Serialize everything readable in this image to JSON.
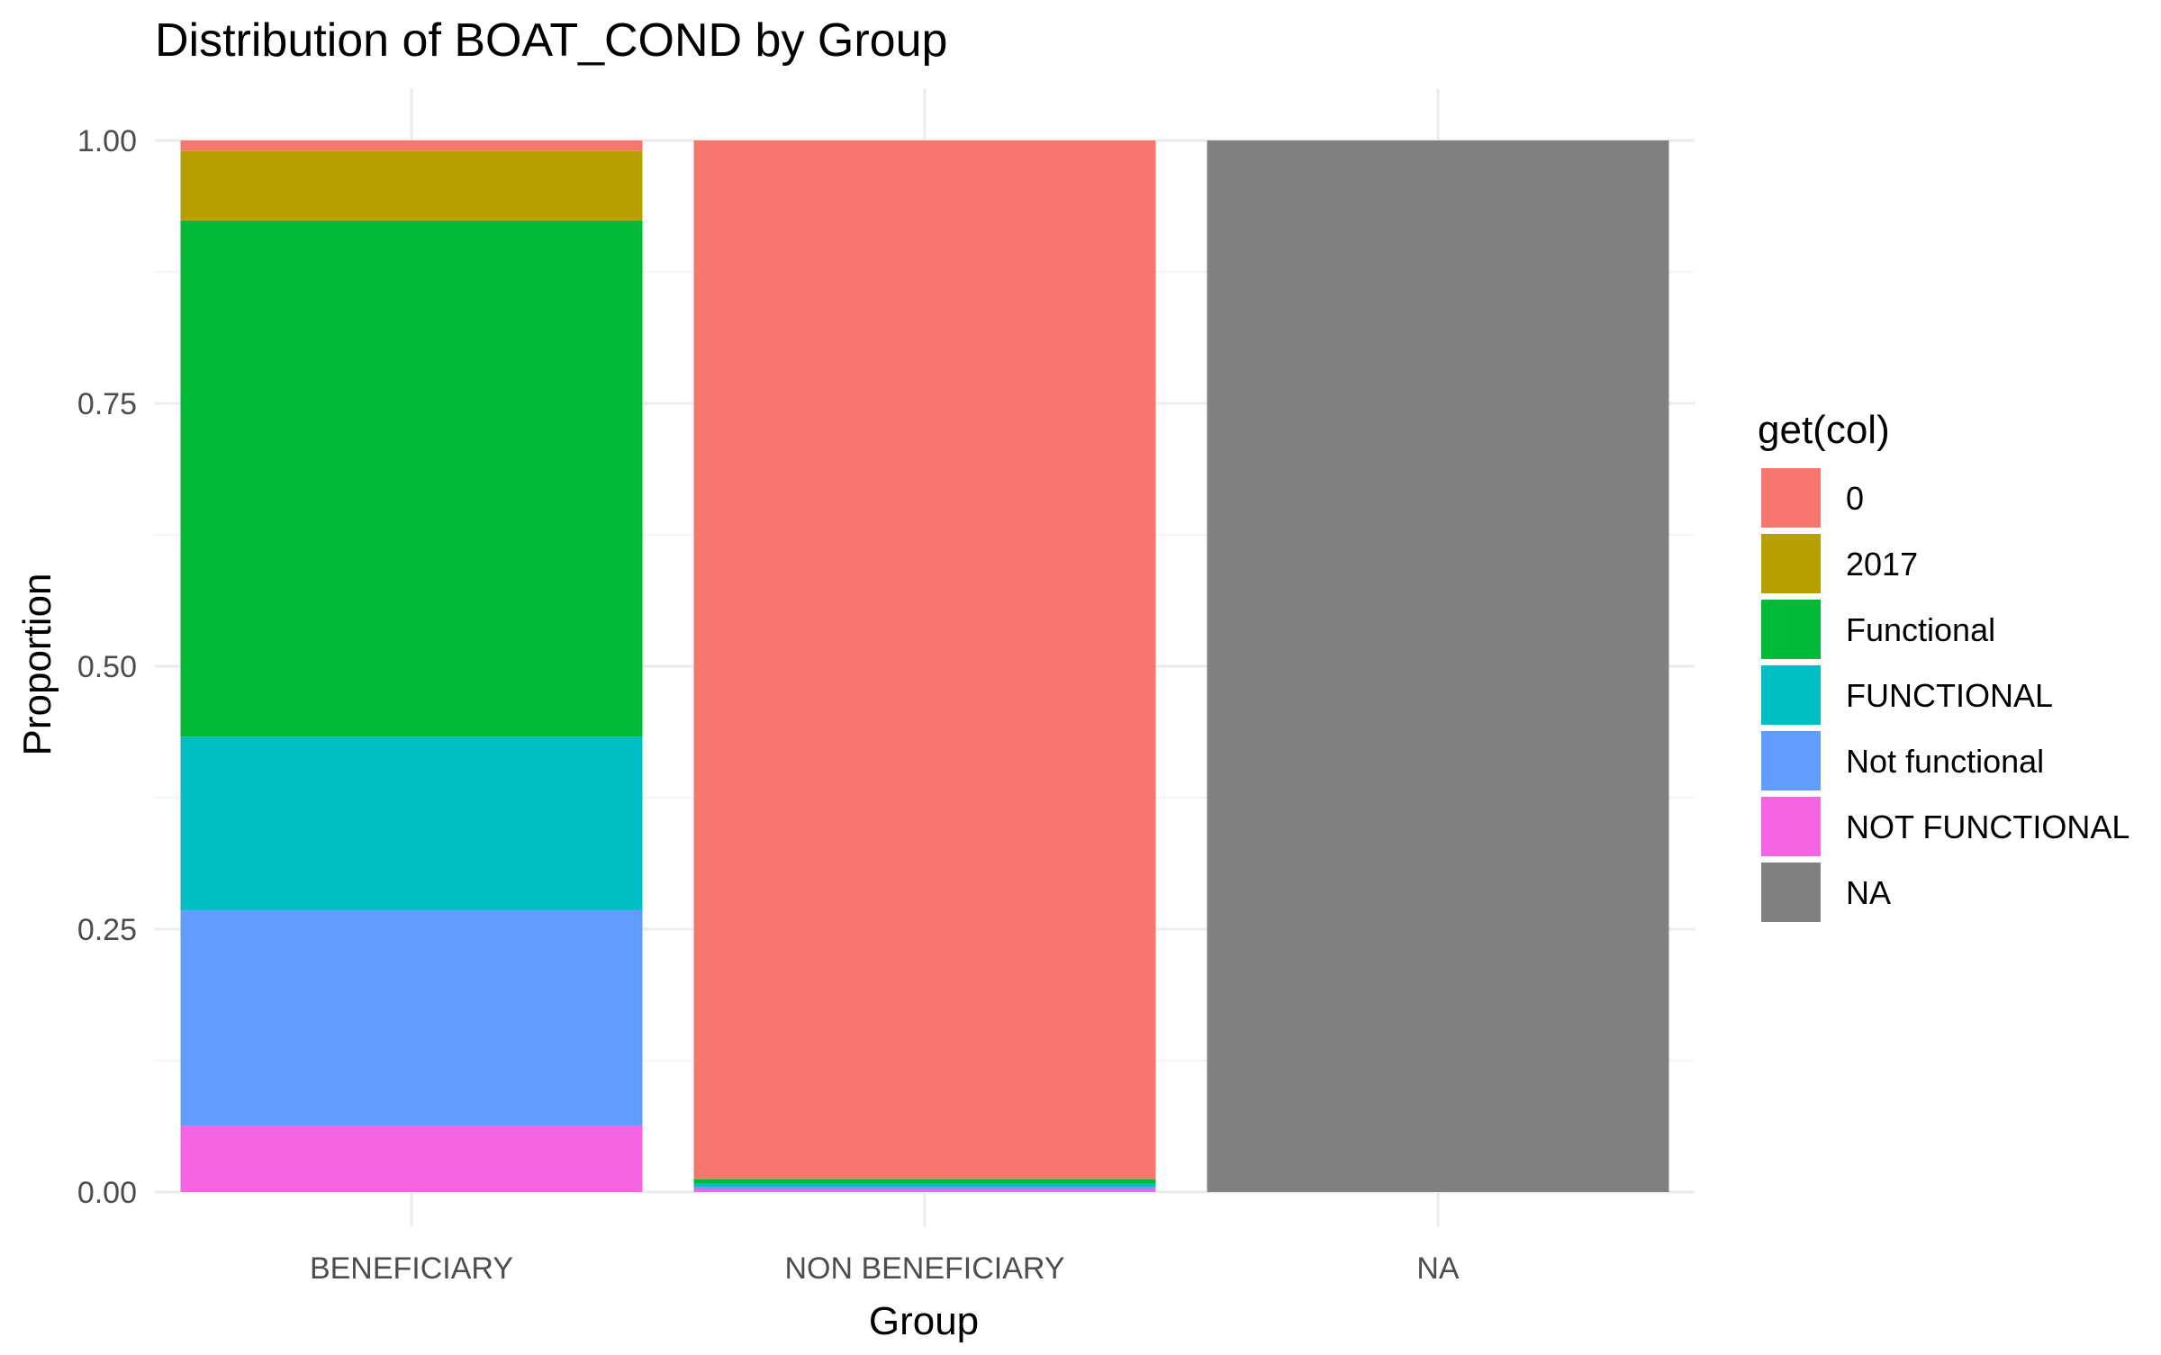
{
  "chart_data": {
    "type": "bar",
    "stacked": true,
    "title": "Distribution of BOAT_COND by Group",
    "xlabel": "Group",
    "ylabel": "Proportion",
    "ylim": [
      0,
      1
    ],
    "y_ticks": [
      "0.00",
      "0.25",
      "0.50",
      "0.75",
      "1.00"
    ],
    "y_tick_values": [
      0,
      0.25,
      0.5,
      0.75,
      1.0
    ],
    "categories": [
      "BENEFICIARY",
      "NON BENEFICIARY",
      "NA"
    ],
    "legend": {
      "title": "get(col)",
      "placement": "right"
    },
    "grid": true,
    "series": [
      {
        "name": "0",
        "color": "#F8766D",
        "values": [
          0.01,
          0.988,
          0.0
        ]
      },
      {
        "name": "2017",
        "color": "#B79F00",
        "values": [
          0.066,
          0.0,
          0.0
        ]
      },
      {
        "name": "Functional",
        "color": "#00BA38",
        "values": [
          0.491,
          0.004,
          0.0
        ]
      },
      {
        "name": "FUNCTIONAL",
        "color": "#00BFC4",
        "values": [
          0.165,
          0.003,
          0.0
        ]
      },
      {
        "name": "Not functional",
        "color": "#619CFF",
        "values": [
          0.205,
          0.002,
          0.0
        ]
      },
      {
        "name": "NOT FUNCTIONAL",
        "color": "#F564E3",
        "values": [
          0.063,
          0.003,
          0.0
        ]
      },
      {
        "name": "NA",
        "color": "#808080",
        "values": [
          0.0,
          0.0,
          1.0
        ]
      }
    ]
  }
}
